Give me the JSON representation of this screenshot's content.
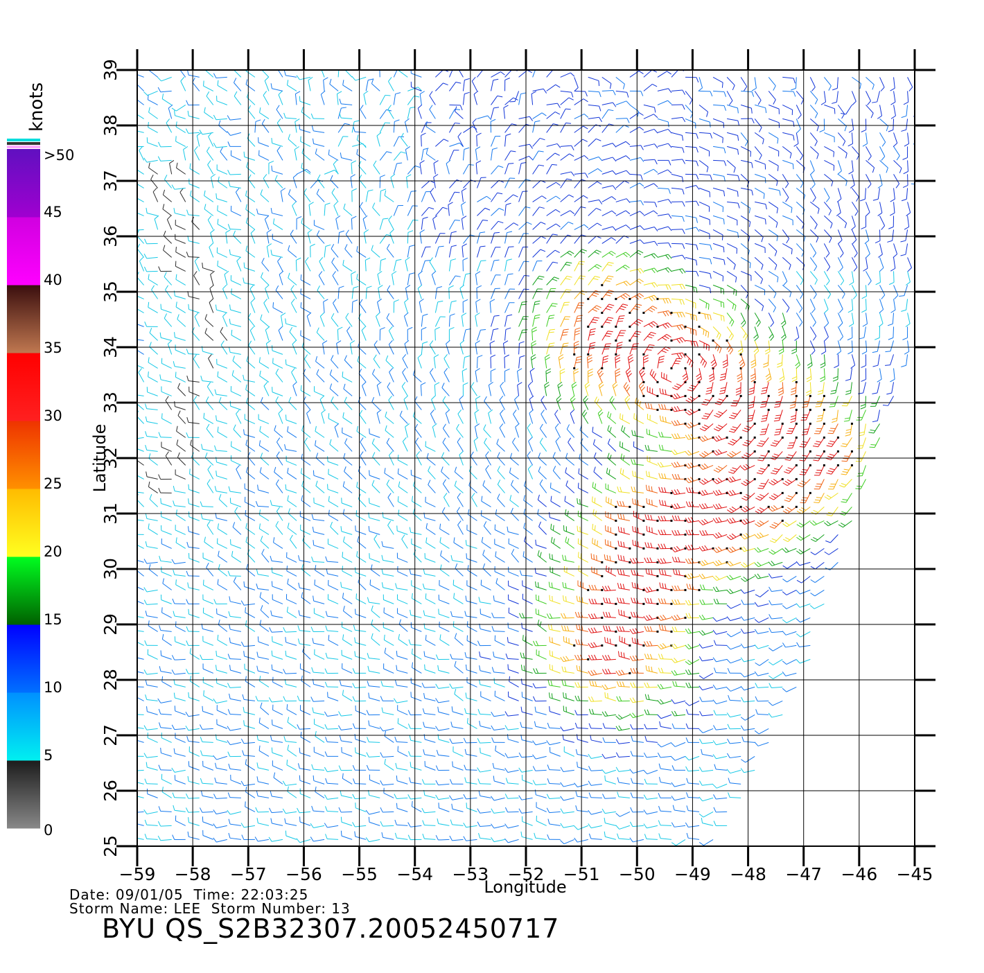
{
  "map": {
    "xlabel": "Longitude",
    "ylabel": "Latitude",
    "lon_range": [
      -59,
      -45
    ],
    "lat_range": [
      25,
      39
    ],
    "lon_ticks": [
      "−59",
      "−58",
      "−57",
      "−56",
      "−55",
      "−54",
      "−53",
      "−52",
      "−51",
      "−50",
      "−49",
      "−48",
      "−47",
      "−46",
      "−45"
    ],
    "lat_ticks": [
      "25",
      "26",
      "27",
      "28",
      "29",
      "30",
      "31",
      "32",
      "33",
      "34",
      "35",
      "36",
      "37",
      "38",
      "39"
    ],
    "grid": true,
    "swath_right_edge": [
      [
        -48.5,
        25
      ],
      [
        -47,
        28
      ],
      [
        -45.7,
        32
      ],
      [
        -45,
        34
      ],
      [
        -44.7,
        39
      ]
    ],
    "wind_field": {
      "description_type": "wind vector barbs colored by speed",
      "storm_center": [
        -49.3,
        33.6
      ],
      "max_speed_knots": 35,
      "high_wind_band": [
        [
          -50.5,
          34.2
        ],
        [
          -49,
          33.5
        ],
        [
          -47,
          32.2
        ],
        [
          -49.5,
          30.5
        ],
        [
          -50.3,
          28.8
        ]
      ],
      "light_wind_region": [
        [
          -58.5,
          37
        ],
        [
          -57.5,
          34
        ],
        [
          -58.5,
          31.5
        ]
      ]
    }
  },
  "colorbar": {
    "unit_label": "knots",
    "labels": [
      "0",
      "5",
      "10",
      "15",
      "20",
      "25",
      "30",
      "35",
      "40",
      "45",
      ">50"
    ],
    "segments": [
      {
        "from": 0,
        "to": 5,
        "colors": [
          "#888888",
          "#1c1c1c"
        ]
      },
      {
        "from": 5,
        "to": 10,
        "colors": [
          "#00f0f0",
          "#0090ff"
        ]
      },
      {
        "from": 10,
        "to": 15,
        "colors": [
          "#0070ff",
          "#0000ff"
        ]
      },
      {
        "from": 15,
        "to": 20,
        "colors": [
          "#006000",
          "#00ff20"
        ]
      },
      {
        "from": 20,
        "to": 25,
        "colors": [
          "#ffff20",
          "#ffbb00"
        ]
      },
      {
        "from": 25,
        "to": 30,
        "colors": [
          "#ff9000",
          "#ee3300"
        ]
      },
      {
        "from": 30,
        "to": 35,
        "colors": [
          "#ff2020",
          "#ff0000"
        ]
      },
      {
        "from": 35,
        "to": 40,
        "colors": [
          "#c07850",
          "#3a0e0e"
        ]
      },
      {
        "from": 40,
        "to": 45,
        "colors": [
          "#ff00ff",
          "#d000e0"
        ]
      },
      {
        "from": 45,
        "to": 50,
        "colors": [
          "#a000d0",
          "#6010c0"
        ]
      }
    ],
    "top_stripes": [
      "#00dddd",
      "#333333",
      "#ffaaff"
    ]
  },
  "info": {
    "line1": "Date: 09/01/05  Time: 22:03:25",
    "line2": "Storm Name: LEE  Storm Number: 13",
    "product_id": "BYU QS_S2B32307.20052450717"
  }
}
